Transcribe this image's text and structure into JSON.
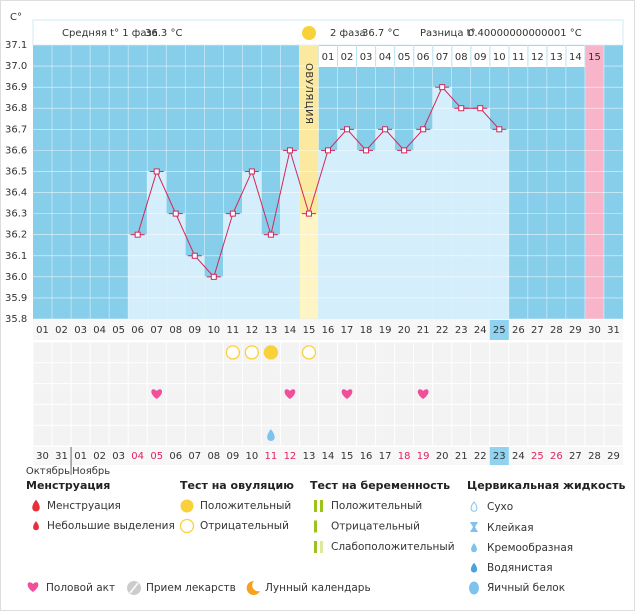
{
  "header": {
    "phase1_label": "Средняя t° 1 фаза",
    "phase1_value": "36.3 °C",
    "phase2_label": "2 фаза",
    "phase2_value": "36.7 °C",
    "diff_label": "Разница t°",
    "diff_value": "0.40000000000001 °C"
  },
  "chart_data": {
    "type": "bar",
    "y_label": "C°",
    "categories": [
      "01",
      "02",
      "03",
      "04",
      "05",
      "06",
      "07",
      "08",
      "09",
      "10",
      "11",
      "12",
      "13",
      "14",
      "15",
      "16",
      "17",
      "18",
      "19",
      "20",
      "21",
      "22",
      "23",
      "24",
      "25",
      "26",
      "27",
      "28",
      "29",
      "30",
      "31"
    ],
    "values": [
      null,
      null,
      null,
      null,
      null,
      36.2,
      36.5,
      36.3,
      36.1,
      36.0,
      36.3,
      36.5,
      36.2,
      36.6,
      36.3,
      36.6,
      36.7,
      36.6,
      36.7,
      36.6,
      36.7,
      36.9,
      36.8,
      36.8,
      36.7,
      null,
      null,
      null,
      null,
      null,
      null
    ],
    "phase2_labels": [
      null,
      null,
      null,
      null,
      null,
      null,
      null,
      null,
      null,
      null,
      null,
      null,
      null,
      null,
      null,
      "01",
      "02",
      "03",
      "04",
      "05",
      "06",
      "07",
      "08",
      "09",
      "10",
      "11",
      "12",
      "13",
      "14",
      "15",
      null
    ],
    "ylim": [
      35.8,
      37.1
    ],
    "yticks": [
      35.8,
      35.9,
      {
        "value": 36,
        "label": "36.0"
      },
      36.1,
      36.2,
      36.3,
      36.4,
      36.5,
      36.6,
      36.7,
      36.8,
      36.9,
      {
        "value": 37,
        "label": "37.0"
      },
      37.1
    ],
    "grid": true,
    "color": "#d4effb",
    "line_color": "#d2285a",
    "background": "#87ceeb",
    "ovulation_day": "15",
    "ovulation_label": "ОВУЛЯЦИЯ",
    "period_forecast_day": "30",
    "today": "25"
  },
  "calendar": {
    "dates": [
      "30",
      "31",
      "01",
      "02",
      "03",
      "04",
      "05",
      "06",
      "07",
      "08",
      "09",
      "10",
      "11",
      "12",
      "13",
      "14",
      "15",
      "16",
      "17",
      "18",
      "19",
      "20",
      "21",
      "22",
      "23",
      "24",
      "25",
      "26",
      "27",
      "28",
      "29"
    ],
    "weekend": [
      false,
      false,
      false,
      false,
      false,
      true,
      true,
      false,
      false,
      false,
      false,
      false,
      true,
      true,
      false,
      false,
      false,
      false,
      false,
      true,
      true,
      false,
      false,
      false,
      false,
      false,
      true,
      true,
      false,
      false,
      false
    ],
    "highlight": "23",
    "months": [
      "Октябрь",
      "Ноябрь"
    ],
    "ovulation_tests": [
      {
        "day": 11,
        "result": "negative"
      },
      {
        "day": 12,
        "result": "negative"
      },
      {
        "day": 13,
        "result": "positive"
      },
      {
        "day": 15,
        "result": "negative"
      }
    ],
    "intercourse": [
      7,
      14,
      17,
      21
    ],
    "egg_white": [
      13
    ]
  },
  "legend": {
    "menstruation": {
      "title": "Менструация",
      "items": [
        "Менструация",
        "Небольшие выделения"
      ]
    },
    "ovulation_test": {
      "title": "Тест на овуляцию",
      "items": [
        "Положительный",
        "Отрицательный"
      ]
    },
    "pregnancy_test": {
      "title": "Тест на беременность",
      "items": [
        "Положительный",
        "Отрицательный",
        "Слабоположительный"
      ]
    },
    "cervical": {
      "title": "Цервикальная жидкость",
      "items": [
        "Сухо",
        "Клейкая",
        "Кремообразная",
        "Водянистая",
        "Яичный белок"
      ]
    },
    "other": [
      "Половой акт",
      "Прием лекарств",
      "Лунный календарь"
    ]
  }
}
